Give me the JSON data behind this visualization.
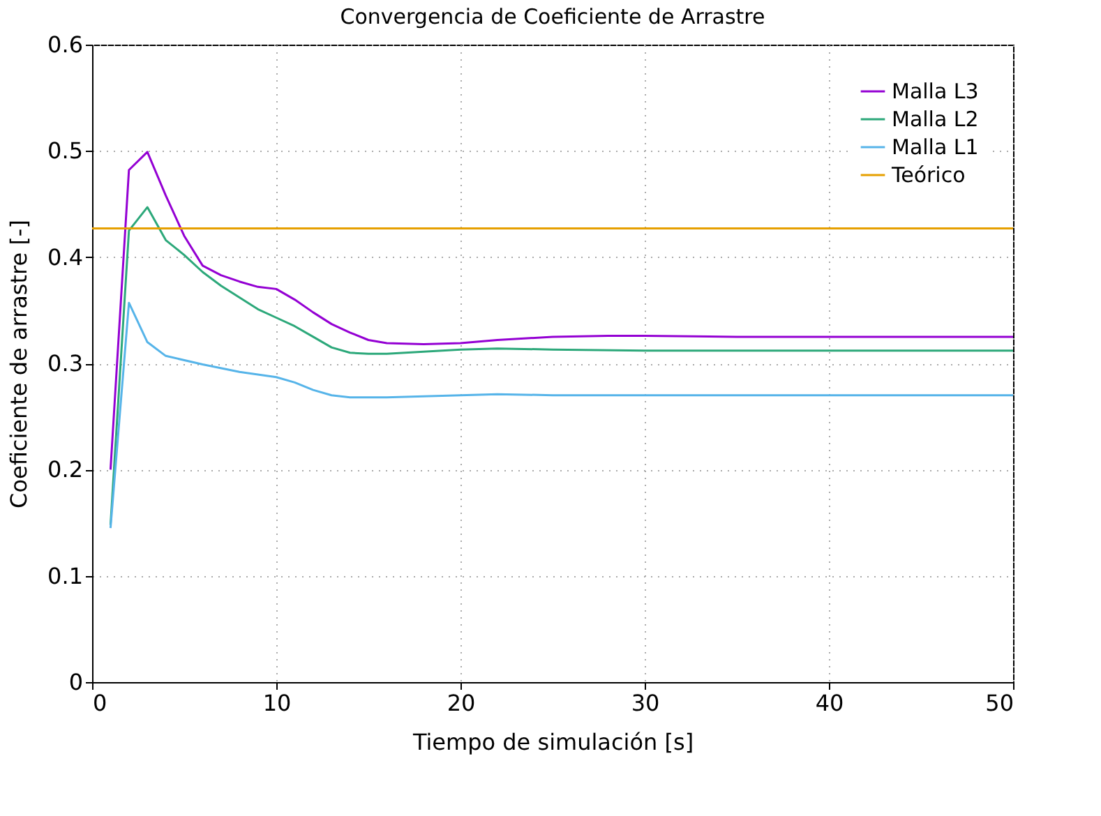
{
  "chart_data": {
    "type": "line",
    "title": "Convergencia de Coeficiente de Arrastre",
    "xlabel": "Tiempo de simulación [s]",
    "ylabel": "Coeficiente de arrastre [-]",
    "xlim": [
      0,
      50
    ],
    "xticks": [
      0,
      10,
      20,
      30,
      40,
      50
    ],
    "ylim": [
      0,
      0.6
    ],
    "yticks": [
      0,
      0.1,
      0.2,
      0.3,
      0.4,
      0.5,
      0.6
    ],
    "grid": true,
    "legend": "top right",
    "marker": "none",
    "line_style": "solid",
    "series": [
      {
        "name": "Malla L3",
        "color": "#9400d3",
        "x": [
          1,
          2,
          3,
          4,
          5,
          6,
          7,
          8,
          9,
          10,
          11,
          12,
          13,
          14,
          15,
          16,
          18,
          20,
          22,
          25,
          28,
          30,
          35,
          40,
          45,
          50
        ],
        "values": [
          0.2,
          0.482,
          0.499,
          0.458,
          0.42,
          0.392,
          0.383,
          0.377,
          0.372,
          0.37,
          0.36,
          0.348,
          0.337,
          0.329,
          0.322,
          0.319,
          0.318,
          0.319,
          0.322,
          0.325,
          0.326,
          0.326,
          0.325,
          0.325,
          0.325,
          0.325
        ]
      },
      {
        "name": "Malla L2",
        "color": "#2ca87a",
        "x": [
          1,
          2,
          3,
          4,
          5,
          6,
          7,
          8,
          9,
          10,
          11,
          12,
          13,
          14,
          15,
          16,
          18,
          20,
          22,
          25,
          30,
          40,
          50
        ],
        "values": [
          0.148,
          0.425,
          0.447,
          0.416,
          0.402,
          0.386,
          0.373,
          0.362,
          0.351,
          0.343,
          0.335,
          0.325,
          0.315,
          0.31,
          0.309,
          0.309,
          0.311,
          0.313,
          0.314,
          0.313,
          0.312,
          0.312,
          0.312
        ]
      },
      {
        "name": "Malla L1",
        "color": "#56b4e9",
        "x": [
          1,
          2,
          3,
          4,
          6,
          8,
          10,
          11,
          12,
          13,
          14,
          16,
          20,
          22,
          25,
          30,
          40,
          50
        ],
        "values": [
          0.145,
          0.357,
          0.32,
          0.307,
          0.299,
          0.292,
          0.287,
          0.282,
          0.275,
          0.27,
          0.268,
          0.268,
          0.27,
          0.271,
          0.27,
          0.27,
          0.27,
          0.27
        ]
      },
      {
        "name": "Teórico",
        "color": "#e69f00",
        "x": [
          0,
          50
        ],
        "values": [
          0.427,
          0.427
        ]
      }
    ]
  }
}
